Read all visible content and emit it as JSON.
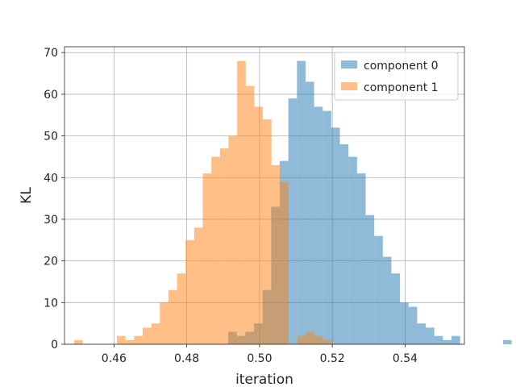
{
  "chart_data": {
    "type": "histogram",
    "xlabel": "iteration",
    "ylabel": "KL",
    "xlim": [
      0.4464,
      0.5563
    ],
    "ylim": [
      0,
      71.4
    ],
    "xticks": [
      0.46,
      0.48,
      0.5,
      0.52,
      0.54
    ],
    "xtick_labels": [
      "0.46",
      "0.48",
      "0.50",
      "0.52",
      "0.54"
    ],
    "yticks": [
      0,
      10,
      20,
      30,
      40,
      50,
      60,
      70
    ],
    "ytick_labels": [
      "0",
      "10",
      "20",
      "30",
      "40",
      "50",
      "60",
      "70"
    ],
    "grid": true,
    "legend_position": "top-right",
    "bar_alpha": 0.5,
    "series": [
      {
        "name": "component 0",
        "color": "#1f77b4",
        "bin_start": 0.4914,
        "bin_width": 0.00236,
        "values": [
          3,
          2,
          3,
          5,
          13,
          33,
          44,
          59,
          68,
          63,
          57,
          56,
          52,
          48,
          45,
          41,
          31,
          26,
          21,
          17,
          10,
          9,
          5,
          4,
          2,
          1,
          2,
          0,
          0,
          0,
          0,
          0,
          1
        ]
      },
      {
        "name": "component 1",
        "color": "#ff7f0e",
        "bin_start": 0.449,
        "bin_width": 0.00236,
        "values": [
          1,
          0,
          0,
          0,
          0,
          2,
          1,
          2,
          4,
          5,
          10,
          13,
          17,
          25,
          28,
          41,
          45,
          47,
          50,
          68,
          62,
          57,
          54,
          43,
          39,
          0,
          2,
          3,
          2,
          1,
          0,
          0,
          0
        ]
      }
    ]
  }
}
